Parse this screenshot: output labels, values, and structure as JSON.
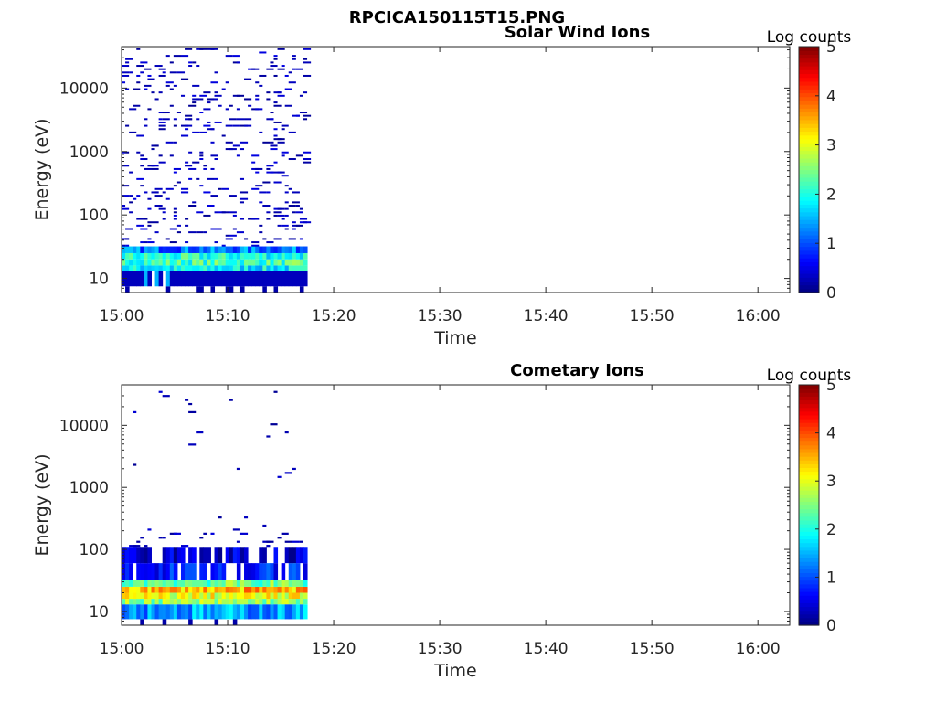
{
  "figure_title": "RPCICA150115T15.PNG",
  "chart_data": [
    {
      "type": "heatmap",
      "title": "Solar Wind Ions",
      "xlabel": "Time",
      "ylabel": "Energy (eV)",
      "x_ticks": [
        "15:00",
        "15:10",
        "15:20",
        "15:30",
        "15:40",
        "15:50",
        "16:00"
      ],
      "xlim": [
        "15:00",
        "16:03"
      ],
      "y_scale": "log",
      "y_ticks": [
        10,
        100,
        1000,
        10000
      ],
      "ylim": [
        6,
        45000
      ],
      "colorbar": {
        "label": "Log counts",
        "range": [
          0,
          5
        ],
        "ticks": [
          0,
          1,
          2,
          3,
          4,
          5
        ],
        "colormap": "jet"
      },
      "data_time_range": [
        "15:00",
        "15:17.5"
      ],
      "bands": [
        {
          "e_low": 6,
          "e_high": 7.5,
          "level": 0.2,
          "pattern": "sparse-bottom"
        },
        {
          "e_low": 7.5,
          "e_high": 13,
          "level": 0.3,
          "pattern": "solid-with-gaps"
        },
        {
          "e_low": 13,
          "e_high": 16,
          "level": 1.8,
          "pattern": "mixed"
        },
        {
          "e_low": 16,
          "e_high": 20,
          "level": 2.2,
          "pattern": "mixed"
        },
        {
          "e_low": 20,
          "e_high": 25,
          "level": 2.0,
          "pattern": "mixed"
        },
        {
          "e_low": 25,
          "e_high": 32,
          "level": 1.2,
          "pattern": "mixed"
        },
        {
          "e_low": 32,
          "e_high": 45000,
          "level": 0.1,
          "pattern": "scatter-dense"
        }
      ]
    },
    {
      "type": "heatmap",
      "title": "Cometary Ions",
      "xlabel": "Time",
      "ylabel": "Energy (eV)",
      "x_ticks": [
        "15:00",
        "15:10",
        "15:20",
        "15:30",
        "15:40",
        "15:50",
        "16:00"
      ],
      "xlim": [
        "15:00",
        "16:03"
      ],
      "y_scale": "log",
      "y_ticks": [
        10,
        100,
        1000,
        10000
      ],
      "ylim": [
        6,
        45000
      ],
      "colorbar": {
        "label": "Log counts",
        "range": [
          0,
          5
        ],
        "ticks": [
          0,
          1,
          2,
          3,
          4,
          5
        ],
        "colormap": "jet"
      },
      "data_time_range": [
        "15:00",
        "15:17.5"
      ],
      "bands": [
        {
          "e_low": 6,
          "e_high": 7.5,
          "level": 0.2,
          "pattern": "sparse-bottom"
        },
        {
          "e_low": 7.5,
          "e_high": 13,
          "level": 1.4,
          "pattern": "mixed"
        },
        {
          "e_low": 13,
          "e_high": 16,
          "level": 2.6,
          "pattern": "mixed"
        },
        {
          "e_low": 16,
          "e_high": 20,
          "level": 3.0,
          "pattern": "mixed"
        },
        {
          "e_low": 20,
          "e_high": 25,
          "level": 3.5,
          "pattern": "mixed"
        },
        {
          "e_low": 25,
          "e_high": 32,
          "level": 2.4,
          "pattern": "mixed"
        },
        {
          "e_low": 32,
          "e_high": 60,
          "level": 0.6,
          "pattern": "blocky"
        },
        {
          "e_low": 60,
          "e_high": 110,
          "level": 0.2,
          "pattern": "blocky"
        },
        {
          "e_low": 110,
          "e_high": 45000,
          "level": 0.1,
          "pattern": "scatter-sparse"
        }
      ]
    }
  ]
}
